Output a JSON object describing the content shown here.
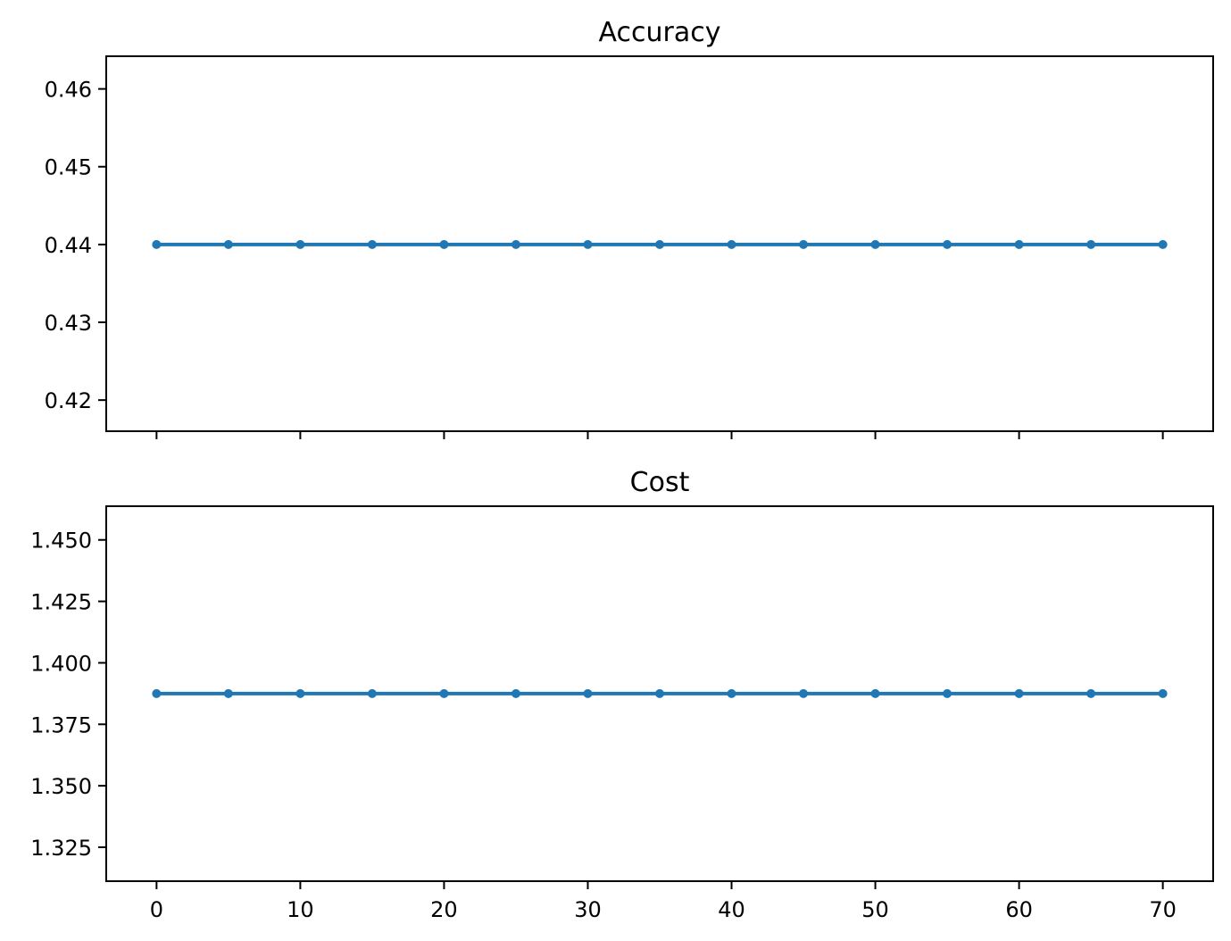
{
  "chart_data": [
    {
      "type": "line",
      "title": "Accuracy",
      "xlabel": "",
      "ylabel": "",
      "x": [
        0,
        5,
        10,
        15,
        20,
        25,
        30,
        35,
        40,
        45,
        50,
        55,
        60,
        65,
        70
      ],
      "series": [
        {
          "values": [
            0.44,
            0.44,
            0.44,
            0.44,
            0.44,
            0.44,
            0.44,
            0.44,
            0.44,
            0.44,
            0.44,
            0.44,
            0.44,
            0.44,
            0.44
          ],
          "color": "#1f77b4",
          "markers": true
        }
      ],
      "xlim": [
        -3.5,
        73.5
      ],
      "ylim": [
        0.416,
        0.4642
      ],
      "x_ticks": [
        0,
        10,
        20,
        30,
        40,
        50,
        60,
        70
      ],
      "x_tick_labels_shown": false,
      "y_ticks": [
        0.42,
        0.43,
        0.44,
        0.45,
        0.46
      ],
      "y_tick_labels": [
        "0.42",
        "0.43",
        "0.44",
        "0.45",
        "0.46"
      ],
      "grid": false,
      "legend": "none"
    },
    {
      "type": "line",
      "title": "Cost",
      "xlabel": "",
      "ylabel": "",
      "x": [
        0,
        5,
        10,
        15,
        20,
        25,
        30,
        35,
        40,
        45,
        50,
        55,
        60,
        65,
        70
      ],
      "series": [
        {
          "values": [
            1.3875,
            1.3875,
            1.3875,
            1.3875,
            1.3875,
            1.3875,
            1.3875,
            1.3875,
            1.3875,
            1.3875,
            1.3875,
            1.3875,
            1.3875,
            1.3875,
            1.3875
          ],
          "color": "#1f77b4",
          "markers": true
        }
      ],
      "xlim": [
        -3.5,
        73.5
      ],
      "ylim": [
        1.3112,
        1.4637
      ],
      "x_ticks": [
        0,
        10,
        20,
        30,
        40,
        50,
        60,
        70
      ],
      "x_tick_labels": [
        "0",
        "10",
        "20",
        "30",
        "40",
        "50",
        "60",
        "70"
      ],
      "x_tick_labels_shown": true,
      "y_ticks": [
        1.325,
        1.35,
        1.375,
        1.4,
        1.425,
        1.45
      ],
      "y_tick_labels": [
        "1.325",
        "1.350",
        "1.375",
        "1.400",
        "1.425",
        "1.450"
      ],
      "grid": false,
      "legend": "none"
    }
  ]
}
